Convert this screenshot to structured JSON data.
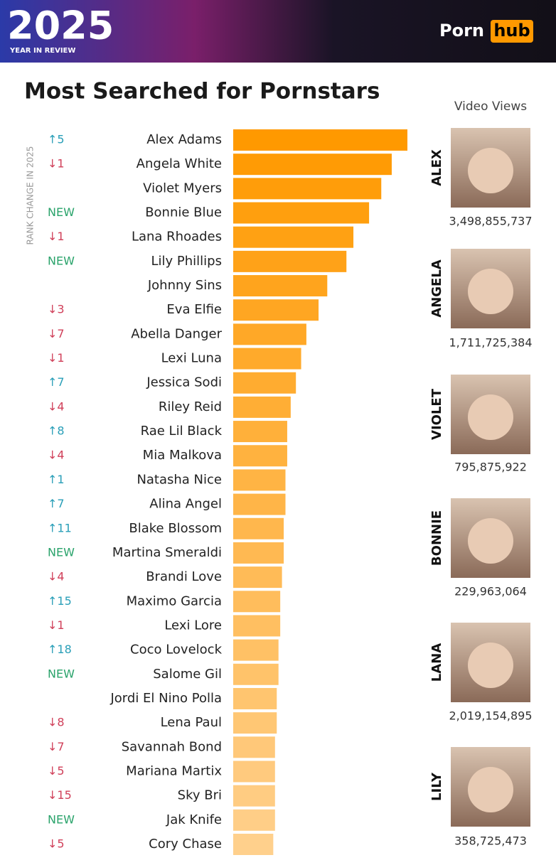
{
  "header": {
    "year": "2025",
    "subtitle": "YEAR IN REVIEW",
    "logo_left": "Porn",
    "logo_right": "hub"
  },
  "chart_data": {
    "type": "hbar",
    "title": "Most Searched for Pornstars",
    "y_label": "RANK CHANGE IN 2025",
    "categories": [
      "Alex Adams",
      "Angela White",
      "Violet Myers",
      "Bonnie Blue",
      "Lana Rhoades",
      "Lily Phillips",
      "Johnny Sins",
      "Eva Elfie",
      "Abella Danger",
      "Lexi Luna",
      "Jessica Sodi",
      "Riley Reid",
      "Rae Lil Black",
      "Mia Malkova",
      "Natasha Nice",
      "Alina Angel",
      "Blake Blossom",
      "Martina Smeraldi",
      "Brandi Love",
      "Maximo Garcia",
      "Lexi Lore",
      "Coco Lovelock",
      "Salome Gil",
      "Jordi El Nino Polla",
      "Lena Paul",
      "Savannah Bond",
      "Mariana Martix",
      "Sky Bri",
      "Jak Knife",
      "Cory Chase"
    ],
    "rank_change": [
      "↑5",
      "↓1",
      null,
      "NEW",
      "↓1",
      "NEW",
      null,
      "↓3",
      "↓7",
      "↓1",
      "↑7",
      "↓4",
      "↑8",
      "↓4",
      "↑1",
      "↑7",
      "↑11",
      "NEW",
      "↓4",
      "↑15",
      "↓1",
      "↑18",
      "NEW",
      null,
      "↓8",
      "↓7",
      "↓5",
      "↓15",
      "NEW",
      "↓5"
    ],
    "values": [
      100,
      91,
      85,
      78,
      69,
      65,
      54,
      49,
      42,
      39,
      36,
      33,
      31,
      31,
      30,
      30,
      29,
      29,
      28,
      27,
      27,
      26,
      26,
      25,
      25,
      24,
      24,
      24,
      24,
      23
    ],
    "xlim": [
      0,
      100
    ],
    "color": "#ff9900",
    "color_end": "#ffd08c",
    "up_color": "#2a9fb8",
    "down_color": "#d0405a",
    "new_color": "#2aa36b"
  },
  "featured": {
    "title": "Video Views",
    "items": [
      {
        "label": "ALEX",
        "views": "3,498,855,737"
      },
      {
        "label": "ANGELA",
        "views": "1,711,725,384"
      },
      {
        "label": "VIOLET",
        "views": "795,875,922"
      },
      {
        "label": "BONNIE",
        "views": "229,963,064"
      },
      {
        "label": "LANA",
        "views": "2,019,154,895"
      },
      {
        "label": "LILY",
        "views": "358,725,473"
      }
    ]
  }
}
